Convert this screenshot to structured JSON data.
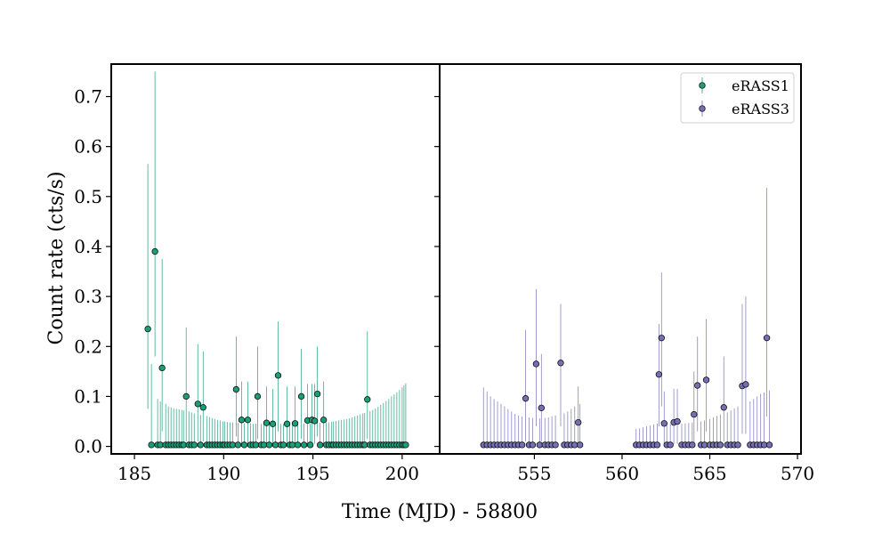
{
  "chart_data": {
    "type": "scatter",
    "title": "",
    "xlabel": "Time (MJD) - 58800",
    "ylabel": "Count rate (cts/s)",
    "ylim": [
      -0.015,
      0.765
    ],
    "yticks": [
      0.0,
      0.1,
      0.2,
      0.3,
      0.4,
      0.5,
      0.6,
      0.7
    ],
    "ytick_labels": [
      "0.0",
      "0.1",
      "0.2",
      "0.3",
      "0.4",
      "0.5",
      "0.6",
      "0.7"
    ],
    "grid": false,
    "legend": {
      "placement": "top-right of right panel",
      "entries": [
        {
          "label": "eRASS1",
          "color": "#1b9e77"
        },
        {
          "label": "eRASS3",
          "color": "#7570b3"
        }
      ]
    },
    "panels": [
      {
        "xlim": [
          183.7,
          202.1
        ],
        "xticks": [
          185,
          190,
          195,
          200
        ],
        "xtick_labels": [
          "185",
          "190",
          "195",
          "200"
        ]
      },
      {
        "xlim": [
          549.6,
          570.2
        ],
        "xticks": [
          555,
          560,
          565,
          570
        ],
        "xtick_labels": [
          "555",
          "560",
          "565",
          "570"
        ]
      }
    ],
    "series": [
      {
        "name": "eRASS1",
        "panel": 0,
        "color": "#1b9e77",
        "detections": [
          {
            "x": 185.75,
            "y": 0.235,
            "lo": 0.075,
            "hi": 0.565
          },
          {
            "x": 186.15,
            "y": 0.39,
            "lo": 0.18,
            "hi": 0.75
          },
          {
            "x": 186.55,
            "y": 0.157,
            "lo": 0.03,
            "hi": 0.375
          },
          {
            "x": 187.9,
            "y": 0.1,
            "lo": 0.01,
            "hi": 0.238
          },
          {
            "x": 188.55,
            "y": 0.085,
            "lo": 0.01,
            "hi": 0.205
          },
          {
            "x": 188.85,
            "y": 0.078,
            "lo": 0.01,
            "hi": 0.19
          },
          {
            "x": 190.7,
            "y": 0.114,
            "lo": 0.02,
            "hi": 0.22
          },
          {
            "x": 191.0,
            "y": 0.053,
            "lo": 0.005,
            "hi": 0.13
          },
          {
            "x": 191.35,
            "y": 0.053,
            "lo": 0.005,
            "hi": 0.13
          },
          {
            "x": 191.9,
            "y": 0.1,
            "lo": 0.015,
            "hi": 0.2
          },
          {
            "x": 192.4,
            "y": 0.047,
            "lo": 0.005,
            "hi": 0.12
          },
          {
            "x": 192.75,
            "y": 0.045,
            "lo": 0.005,
            "hi": 0.115
          },
          {
            "x": 193.05,
            "y": 0.142,
            "lo": 0.03,
            "hi": 0.25
          },
          {
            "x": 193.55,
            "y": 0.045,
            "lo": 0.005,
            "hi": 0.12
          },
          {
            "x": 194.0,
            "y": 0.046,
            "lo": 0.005,
            "hi": 0.12
          },
          {
            "x": 194.35,
            "y": 0.1,
            "lo": 0.015,
            "hi": 0.195
          },
          {
            "x": 194.7,
            "y": 0.052,
            "lo": 0.005,
            "hi": 0.125
          },
          {
            "x": 194.95,
            "y": 0.053,
            "lo": 0.005,
            "hi": 0.125
          },
          {
            "x": 195.1,
            "y": 0.051,
            "lo": 0.005,
            "hi": 0.125
          },
          {
            "x": 195.25,
            "y": 0.105,
            "lo": 0.02,
            "hi": 0.2
          },
          {
            "x": 195.6,
            "y": 0.053,
            "lo": 0.005,
            "hi": 0.13
          },
          {
            "x": 198.05,
            "y": 0.094,
            "lo": 0.015,
            "hi": 0.23
          }
        ],
        "upper_limits": {
          "y": 0.003,
          "x": [
            185.95,
            186.3,
            186.45,
            186.75,
            186.9,
            187.05,
            187.2,
            187.35,
            187.5,
            187.65,
            187.75,
            188.05,
            188.2,
            188.35,
            188.7,
            189.05,
            189.2,
            189.35,
            189.5,
            189.65,
            189.8,
            189.95,
            190.05,
            190.2,
            190.35,
            190.5,
            190.8,
            191.15,
            191.5,
            191.65,
            191.8,
            192.1,
            192.25,
            192.55,
            192.9,
            193.2,
            193.35,
            193.7,
            193.85,
            194.15,
            194.5,
            194.85,
            195.4,
            195.75,
            195.9,
            196.05,
            196.15,
            196.3,
            196.45,
            196.6,
            196.75,
            196.9,
            197.05,
            197.2,
            197.35,
            197.5,
            197.65,
            197.8,
            197.9,
            198.2,
            198.35,
            198.5,
            198.65,
            198.8,
            198.95,
            199.1,
            199.25,
            199.4,
            199.55,
            199.7,
            199.85,
            200.0,
            200.1,
            200.2
          ],
          "hi": [
            0.165,
            0.095,
            0.09,
            0.085,
            0.08,
            0.078,
            0.076,
            0.075,
            0.074,
            0.073,
            0.072,
            0.07,
            0.068,
            0.066,
            0.063,
            0.061,
            0.059,
            0.057,
            0.055,
            0.053,
            0.052,
            0.05,
            0.05,
            0.049,
            0.048,
            0.048,
            0.047,
            0.046,
            0.046,
            0.045,
            0.045,
            0.045,
            0.045,
            0.045,
            0.045,
            0.045,
            0.045,
            0.045,
            0.045,
            0.046,
            0.046,
            0.046,
            0.047,
            0.048,
            0.048,
            0.049,
            0.05,
            0.051,
            0.052,
            0.053,
            0.054,
            0.055,
            0.056,
            0.058,
            0.06,
            0.062,
            0.064,
            0.066,
            0.067,
            0.071,
            0.073,
            0.076,
            0.079,
            0.083,
            0.087,
            0.091,
            0.095,
            0.1,
            0.104,
            0.108,
            0.113,
            0.118,
            0.122,
            0.126
          ]
        }
      },
      {
        "name": "eRASS3",
        "panel": 1,
        "color": "#7570b3",
        "detections": [
          {
            "x": 554.5,
            "y": 0.096,
            "lo": 0.01,
            "hi": 0.233
          },
          {
            "x": 555.1,
            "y": 0.165,
            "lo": 0.04,
            "hi": 0.315
          },
          {
            "x": 555.4,
            "y": 0.077,
            "lo": 0.01,
            "hi": 0.185
          },
          {
            "x": 556.5,
            "y": 0.167,
            "lo": 0.04,
            "hi": 0.285
          },
          {
            "x": 557.5,
            "y": 0.048,
            "lo": 0.005,
            "hi": 0.12
          },
          {
            "x": 562.1,
            "y": 0.144,
            "lo": 0.04,
            "hi": 0.245
          },
          {
            "x": 562.25,
            "y": 0.217,
            "lo": 0.08,
            "hi": 0.348
          },
          {
            "x": 562.4,
            "y": 0.046,
            "lo": 0.005,
            "hi": 0.11
          },
          {
            "x": 562.95,
            "y": 0.048,
            "lo": 0.005,
            "hi": 0.115
          },
          {
            "x": 563.15,
            "y": 0.05,
            "lo": 0.005,
            "hi": 0.115
          },
          {
            "x": 564.1,
            "y": 0.064,
            "lo": 0.005,
            "hi": 0.15
          },
          {
            "x": 564.3,
            "y": 0.122,
            "lo": 0.03,
            "hi": 0.22
          },
          {
            "x": 564.8,
            "y": 0.133,
            "lo": 0.03,
            "hi": 0.255
          },
          {
            "x": 565.8,
            "y": 0.078,
            "lo": 0.01,
            "hi": 0.18
          },
          {
            "x": 566.85,
            "y": 0.121,
            "lo": 0.025,
            "hi": 0.285
          },
          {
            "x": 567.05,
            "y": 0.124,
            "lo": 0.025,
            "hi": 0.3
          },
          {
            "x": 568.25,
            "y": 0.217,
            "lo": 0.06,
            "hi": 0.517
          }
        ],
        "upper_limits": {
          "y": 0.003,
          "x": [
            552.1,
            552.3,
            552.5,
            552.7,
            552.9,
            553.1,
            553.3,
            553.5,
            553.7,
            553.9,
            554.1,
            554.3,
            554.7,
            554.9,
            555.3,
            555.6,
            555.8,
            556.0,
            556.2,
            556.7,
            556.9,
            557.1,
            557.3,
            557.6,
            560.8,
            561.0,
            561.2,
            561.4,
            561.6,
            561.8,
            562.0,
            562.55,
            562.75,
            563.4,
            563.6,
            563.8,
            564.0,
            564.5,
            564.7,
            565.0,
            565.2,
            565.4,
            565.6,
            566.0,
            566.2,
            566.4,
            566.6,
            567.3,
            567.5,
            567.7,
            567.9,
            568.1,
            568.4
          ],
          "hi": [
            0.118,
            0.11,
            0.1,
            0.095,
            0.09,
            0.085,
            0.08,
            0.075,
            0.07,
            0.065,
            0.062,
            0.06,
            0.058,
            0.057,
            0.056,
            0.057,
            0.058,
            0.06,
            0.062,
            0.066,
            0.07,
            0.075,
            0.08,
            0.085,
            0.035,
            0.036,
            0.038,
            0.04,
            0.042,
            0.044,
            0.046,
            0.045,
            0.045,
            0.045,
            0.046,
            0.047,
            0.048,
            0.05,
            0.052,
            0.055,
            0.058,
            0.061,
            0.064,
            0.068,
            0.072,
            0.076,
            0.08,
            0.09,
            0.095,
            0.1,
            0.105,
            0.108,
            0.112
          ]
        }
      }
    ]
  }
}
